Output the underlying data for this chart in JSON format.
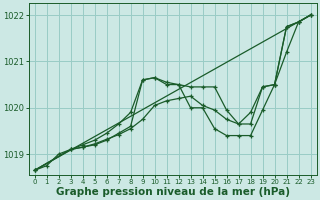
{
  "bg_color": "#cce8e4",
  "grid_color": "#99ccc6",
  "line_color": "#1a5c2a",
  "xlabel": "Graphe pression niveau de la mer (hPa)",
  "xlabel_fontsize": 7.5,
  "xlim": [
    -0.5,
    23.5
  ],
  "ylim": [
    1018.55,
    1022.25
  ],
  "yticks": [
    1019,
    1020,
    1021,
    1022
  ],
  "xticks": [
    0,
    1,
    2,
    3,
    4,
    5,
    6,
    7,
    8,
    9,
    10,
    11,
    12,
    13,
    14,
    15,
    16,
    17,
    18,
    19,
    20,
    21,
    22,
    23
  ],
  "lines": [
    {
      "x": [
        0,
        1,
        2,
        3,
        4,
        5,
        6,
        7,
        8,
        9,
        10,
        11,
        12,
        13,
        14,
        15,
        16,
        17,
        18,
        19,
        20,
        21,
        22,
        23
      ],
      "y": [
        1018.65,
        1018.75,
        1019.0,
        1019.1,
        1019.15,
        1019.2,
        1019.3,
        1019.45,
        1019.6,
        1020.6,
        1020.65,
        1020.5,
        1020.5,
        1020.0,
        1020.0,
        1019.55,
        1019.4,
        1019.4,
        1019.4,
        1019.95,
        1020.5,
        1021.75,
        1021.85,
        1022.0
      ]
    },
    {
      "x": [
        0,
        3,
        4,
        5,
        6,
        7,
        8,
        9,
        10,
        11,
        12,
        13,
        14,
        15,
        16,
        17,
        18,
        19,
        20,
        21,
        22,
        23
      ],
      "y": [
        1018.65,
        1019.1,
        1019.2,
        1019.3,
        1019.45,
        1019.65,
        1019.9,
        1020.6,
        1020.65,
        1020.55,
        1020.5,
        1020.45,
        1020.45,
        1020.45,
        1019.95,
        1019.65,
        1019.65,
        1020.45,
        1020.5,
        1021.75,
        1021.85,
        1022.0
      ]
    },
    {
      "x": [
        0,
        3,
        4,
        5,
        6,
        7,
        8,
        9,
        10,
        11,
        12,
        13,
        14,
        15,
        16,
        17,
        18,
        19,
        20,
        21,
        22,
        23
      ],
      "y": [
        1018.65,
        1019.1,
        1019.15,
        1019.22,
        1019.32,
        1019.42,
        1019.55,
        1019.75,
        1020.05,
        1020.15,
        1020.2,
        1020.25,
        1020.05,
        1019.95,
        1019.75,
        1019.65,
        1019.9,
        1020.45,
        1020.5,
        1021.2,
        1021.85,
        1022.0
      ]
    },
    {
      "x": [
        0,
        23
      ],
      "y": [
        1018.65,
        1022.0
      ]
    }
  ],
  "marker": "+",
  "markersize": 3.5,
  "linewidth": 0.9
}
